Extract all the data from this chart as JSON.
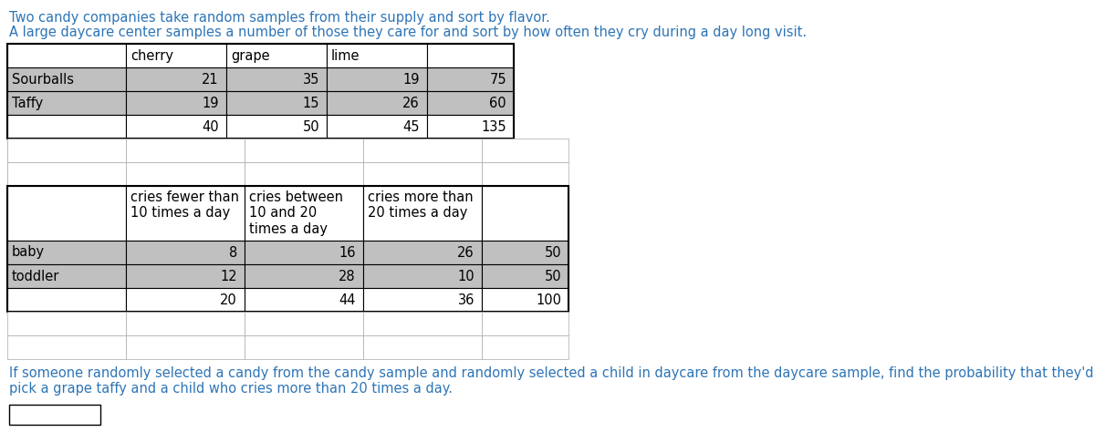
{
  "title_line1": "Two candy companies take random samples from their supply and sort by flavor.",
  "title_line2": "A large daycare center samples a number of those they care for and sort by how often they cry during a day long visit.",
  "title_color": "#2E75B6",
  "table1": {
    "col_headers": [
      "",
      "cherry",
      "grape",
      "lime",
      ""
    ],
    "rows": [
      [
        "Sourballs",
        "21",
        "35",
        "19",
        "75"
      ],
      [
        "Taffy",
        "19",
        "15",
        "26",
        "60"
      ],
      [
        "",
        "40",
        "50",
        "45",
        "135"
      ]
    ],
    "row_label_bg": "#C0C0C0",
    "data_bg_odd": "#C0C0C0",
    "data_bg_even": "#FFFFFF",
    "border_color": "#000000",
    "grid_color": "#AAAAAA"
  },
  "table2": {
    "col_headers_line1": [
      "",
      "cries fewer than",
      "cries between",
      "cries more than",
      ""
    ],
    "col_headers_line2": [
      "",
      "10 times a day",
      "10 and 20",
      "20 times a day",
      ""
    ],
    "col_headers_line3": [
      "",
      "",
      "times a day",
      "",
      ""
    ],
    "rows": [
      [
        "baby",
        "8",
        "16",
        "26",
        "50"
      ],
      [
        "toddler",
        "12",
        "28",
        "10",
        "50"
      ],
      [
        "",
        "20",
        "44",
        "36",
        "100"
      ]
    ],
    "row_label_bg": "#C0C0C0",
    "data_bg_odd": "#C0C0C0",
    "data_bg_even": "#FFFFFF",
    "border_color": "#000000",
    "grid_color": "#AAAAAA"
  },
  "question": "If someone randomly selected a candy from the candy sample and randomly selected a child in daycare from the daycare sample, find the probability that they'd\npick a grape taffy and a child who cries more than 20 times a day.",
  "question_color": "#2E75B6",
  "bg_color": "#FFFFFF",
  "font_size": 10.5,
  "table_font_size": 10.5
}
